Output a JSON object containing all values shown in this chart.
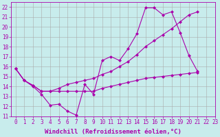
{
  "xlabel": "Windchill (Refroidissement éolien,°C)",
  "ylabel": "",
  "bg_color": "#c8ecec",
  "grid_color": "#aaaaaa",
  "line_color": "#aa00aa",
  "xlim": [
    -0.5,
    23
  ],
  "ylim": [
    11,
    22.5
  ],
  "xticks": [
    0,
    1,
    2,
    3,
    4,
    5,
    6,
    7,
    8,
    9,
    10,
    11,
    12,
    13,
    14,
    15,
    16,
    17,
    18,
    19,
    20,
    21,
    22,
    23
  ],
  "yticks": [
    11,
    12,
    13,
    14,
    15,
    16,
    17,
    18,
    19,
    20,
    21,
    22
  ],
  "line1_y": [
    15.8,
    14.6,
    14.0,
    13.2,
    12.1,
    12.2,
    11.5,
    11.1,
    14.2,
    13.2,
    16.6,
    17.0,
    16.6,
    17.8,
    19.3,
    21.9,
    21.9,
    21.2,
    21.5,
    19.4,
    17.1,
    15.5,
    null,
    null
  ],
  "line2_y": [
    15.8,
    14.6,
    14.1,
    13.5,
    13.5,
    13.8,
    14.2,
    14.4,
    14.6,
    14.8,
    15.2,
    15.5,
    16.0,
    16.5,
    17.2,
    18.0,
    18.6,
    19.2,
    19.8,
    20.5,
    21.2,
    21.5,
    null,
    null
  ],
  "line3_y": [
    15.8,
    14.6,
    14.1,
    13.5,
    13.5,
    13.5,
    13.5,
    13.5,
    13.5,
    13.5,
    13.8,
    14.0,
    14.2,
    14.4,
    14.6,
    14.8,
    14.9,
    15.0,
    15.1,
    15.2,
    15.3,
    15.4,
    null,
    null
  ],
  "marker_size": 2.5,
  "font_color": "#aa00aa",
  "tick_fontsize": 5.5,
  "label_fontsize": 6.5
}
